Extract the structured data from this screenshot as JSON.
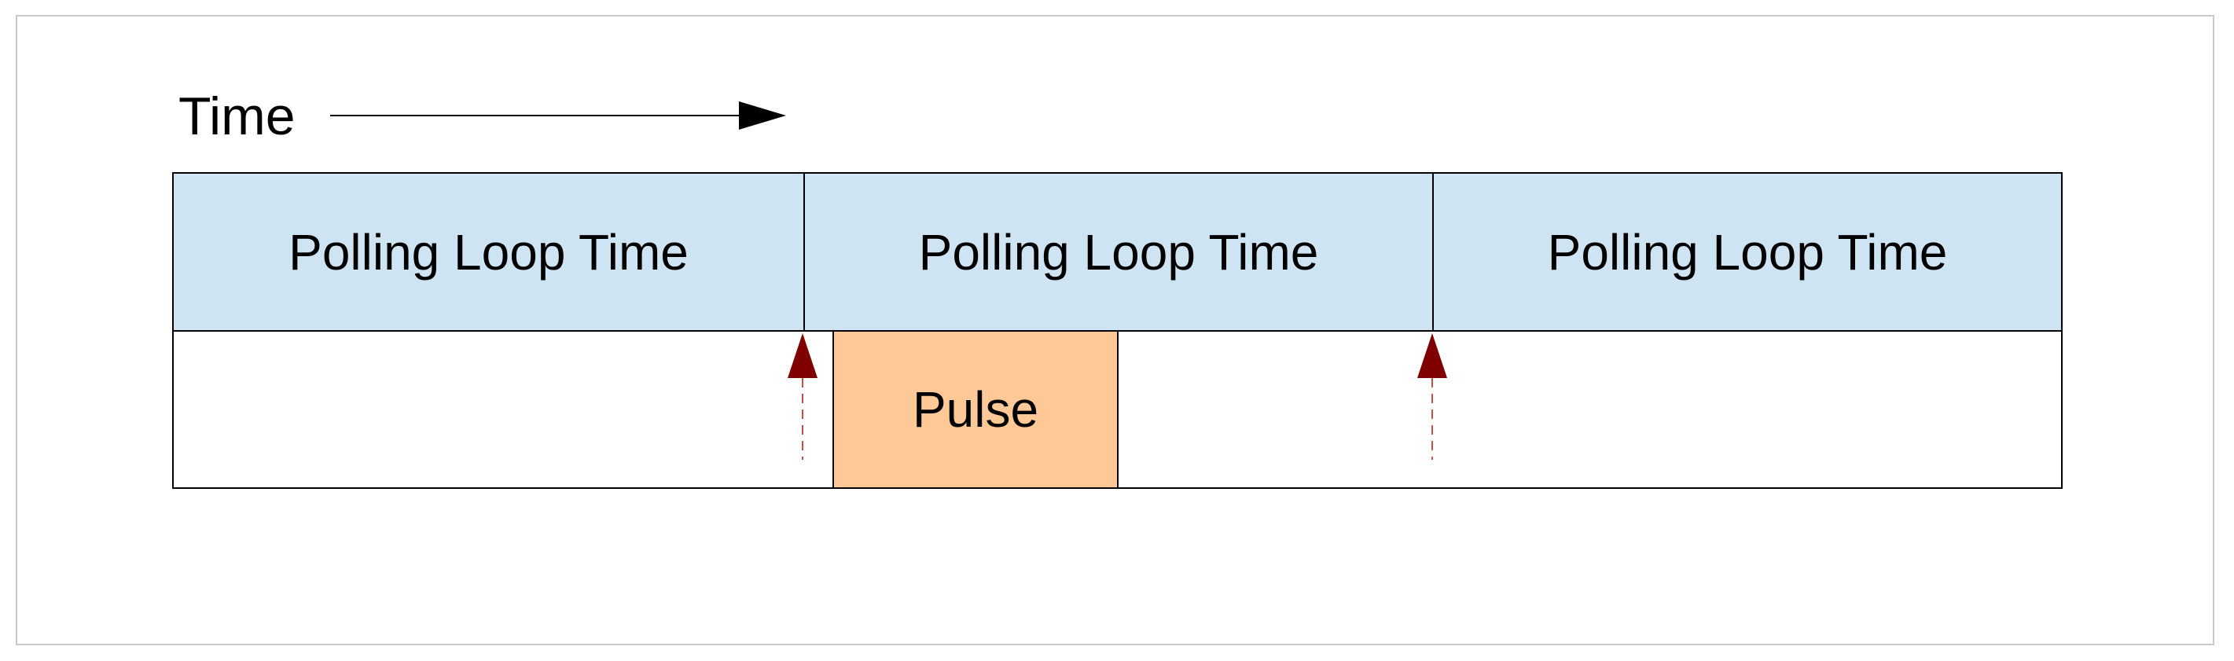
{
  "time_label": "Time",
  "loops": [
    {
      "label": "Polling Loop Time"
    },
    {
      "label": "Polling Loop Time"
    },
    {
      "label": "Polling Loop Time"
    }
  ],
  "pulse": {
    "label": "Pulse"
  },
  "colors": {
    "loop_fill": "#cfe4f2",
    "pulse_fill": "#fec996",
    "poll_marker": "#800000"
  }
}
